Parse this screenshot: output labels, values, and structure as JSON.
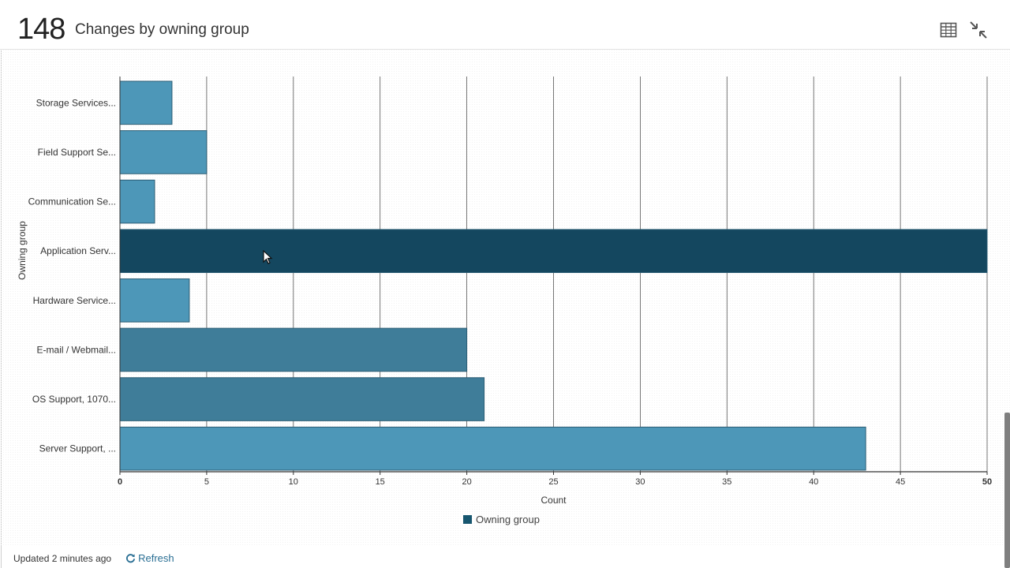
{
  "header": {
    "count": "148",
    "title": "Changes by owning group",
    "table_icon": "table-grid-icon",
    "collapse_icon": "collapse-arrows-icon"
  },
  "chart_data": {
    "type": "bar",
    "orientation": "horizontal",
    "categories": [
      "Storage Services...",
      "Field Support Se...",
      "Communication Se...",
      "Application Serv...",
      "Hardware Service...",
      "E-mail / Webmail...",
      "OS Support, 1070...",
      "Server Support, ..."
    ],
    "series": [
      {
        "name": "Owning group",
        "values": [
          3,
          5,
          2,
          50,
          4,
          20,
          21,
          43
        ]
      }
    ],
    "xlabel": "Count",
    "ylabel": "Owning group",
    "xlim": [
      0,
      50
    ],
    "xticks": [
      "0",
      "5",
      "10",
      "15",
      "20",
      "25",
      "30",
      "35",
      "40",
      "45",
      "50"
    ],
    "grid": true,
    "legend": "bottom-center",
    "colors": {
      "bar": "#4d97b8",
      "bar_highlight": "#14475f",
      "bar_dark": "#3f7d99",
      "legend_swatch": "#17566f"
    },
    "highlight_index": 3,
    "dark_indices": [
      5,
      6
    ]
  },
  "legend": {
    "label": "Owning group"
  },
  "footer": {
    "updated": "Updated 2 minutes ago",
    "refresh_label": "Refresh",
    "refresh_icon": "refresh-icon"
  }
}
